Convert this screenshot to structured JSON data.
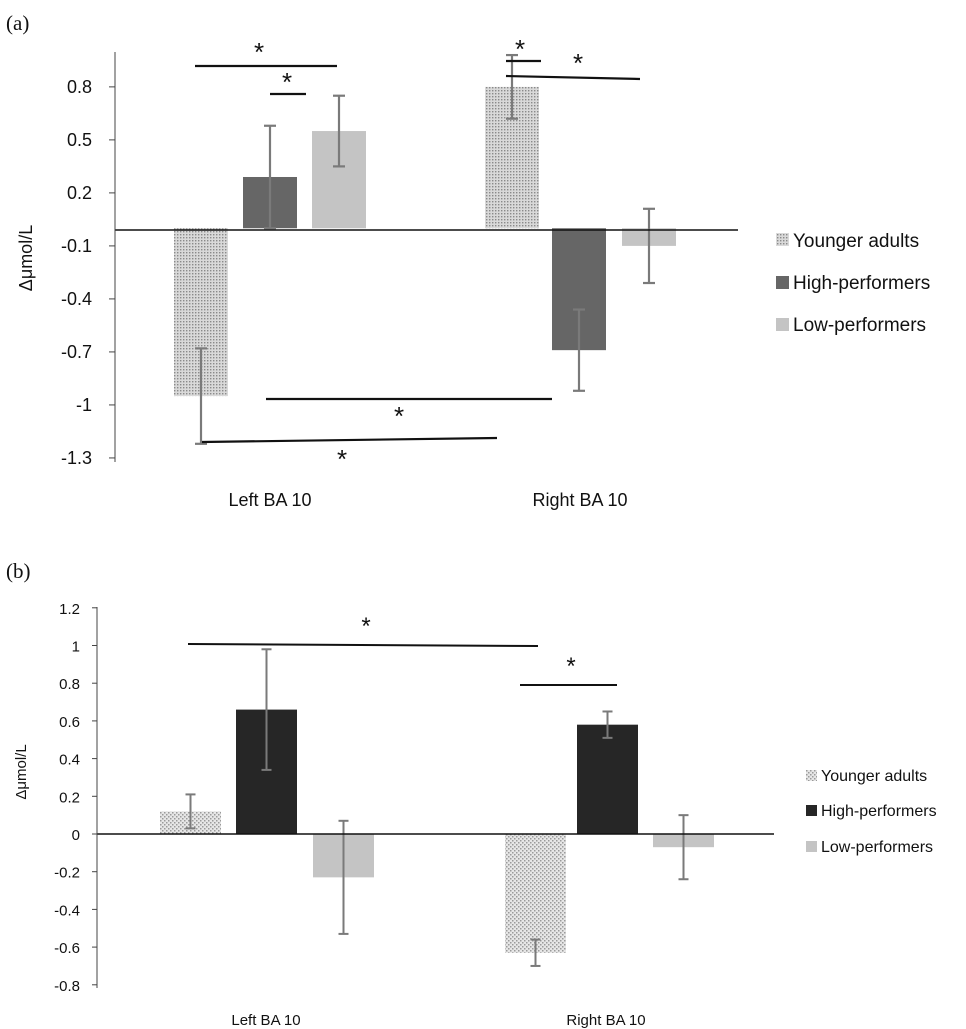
{
  "chart_data": [
    {
      "type": "bar",
      "panel_label": "(a)",
      "categories": [
        "Left BA 10",
        "Right BA 10"
      ],
      "series": [
        {
          "name": "Younger adults",
          "values": [
            -0.95,
            0.8
          ],
          "errors": [
            0.27,
            0.18
          ],
          "color": "#b8b8b8",
          "pattern": "dotted"
        },
        {
          "name": "High-performers",
          "values": [
            0.29,
            -0.69
          ],
          "errors": [
            0.29,
            0.23
          ],
          "color": "#666666",
          "pattern": "solid"
        },
        {
          "name": "Low-performers",
          "values": [
            0.55,
            -0.1
          ],
          "errors": [
            0.2,
            0.21
          ],
          "color": "#c4c4c4",
          "pattern": "solid"
        }
      ],
      "y_ticks": [
        "0.8",
        "0.5",
        "0.2",
        "-0.1",
        "-0.4",
        "-0.7",
        "-1",
        "-1.3"
      ],
      "y_tick_values": [
        0.8,
        0.5,
        0.2,
        -0.1,
        -0.4,
        -0.7,
        -1,
        -1.3
      ],
      "ylabel": "Δμmol/L",
      "xlabel": "",
      "ylim": [
        -1.3,
        1.0
      ],
      "legend_position": "right",
      "grid": false,
      "annotations": [
        {
          "text": "*",
          "between": "Left BA 10 Younger adults – Left BA 10 Low-performers"
        },
        {
          "text": "*",
          "between": "Left BA 10 High-performers – Left BA 10 Low-performers"
        },
        {
          "text": "*",
          "between": "Right BA 10 Younger adults – Right BA 10 High-performers"
        },
        {
          "text": "*",
          "between": "Right BA 10 Younger adults – Right BA 10 Low-performers"
        },
        {
          "text": "*",
          "between": "Left BA 10 High-performers – Right BA 10 High-performers"
        },
        {
          "text": "*",
          "between": "Left BA 10 Younger adults – Right BA 10 Younger adults"
        }
      ]
    },
    {
      "type": "bar",
      "panel_label": "(b)",
      "categories": [
        "Left BA 10",
        "Right BA 10"
      ],
      "series": [
        {
          "name": "Younger adults",
          "values": [
            0.12,
            -0.63
          ],
          "errors": [
            0.09,
            0.07
          ],
          "color": "#c8c8c8",
          "pattern": "dotted"
        },
        {
          "name": "High-performers",
          "values": [
            0.66,
            0.58
          ],
          "errors": [
            0.32,
            0.07
          ],
          "color": "#262626",
          "pattern": "solid"
        },
        {
          "name": "Low-performers",
          "values": [
            -0.23,
            -0.07
          ],
          "errors": [
            0.3,
            0.17
          ],
          "color": "#c4c4c4",
          "pattern": "solid"
        }
      ],
      "y_ticks": [
        "1.2",
        "1",
        "0.8",
        "0.6",
        "0.4",
        "0.2",
        "0",
        "-0.2",
        "-0.4",
        "-0.6",
        "-0.8"
      ],
      "y_tick_values": [
        1.2,
        1,
        0.8,
        0.6,
        0.4,
        0.2,
        0,
        -0.2,
        -0.4,
        -0.6,
        -0.8
      ],
      "ylabel": "Δμmol/L",
      "xlabel": "",
      "ylim": [
        -0.8,
        1.2
      ],
      "legend_position": "right",
      "grid": false,
      "annotations": [
        {
          "text": "*",
          "between": "Left BA 10 Younger adults – Right BA 10 Younger adults"
        },
        {
          "text": "*",
          "between": "Right BA 10 Younger adults – Right BA 10 High-performers"
        }
      ]
    }
  ]
}
